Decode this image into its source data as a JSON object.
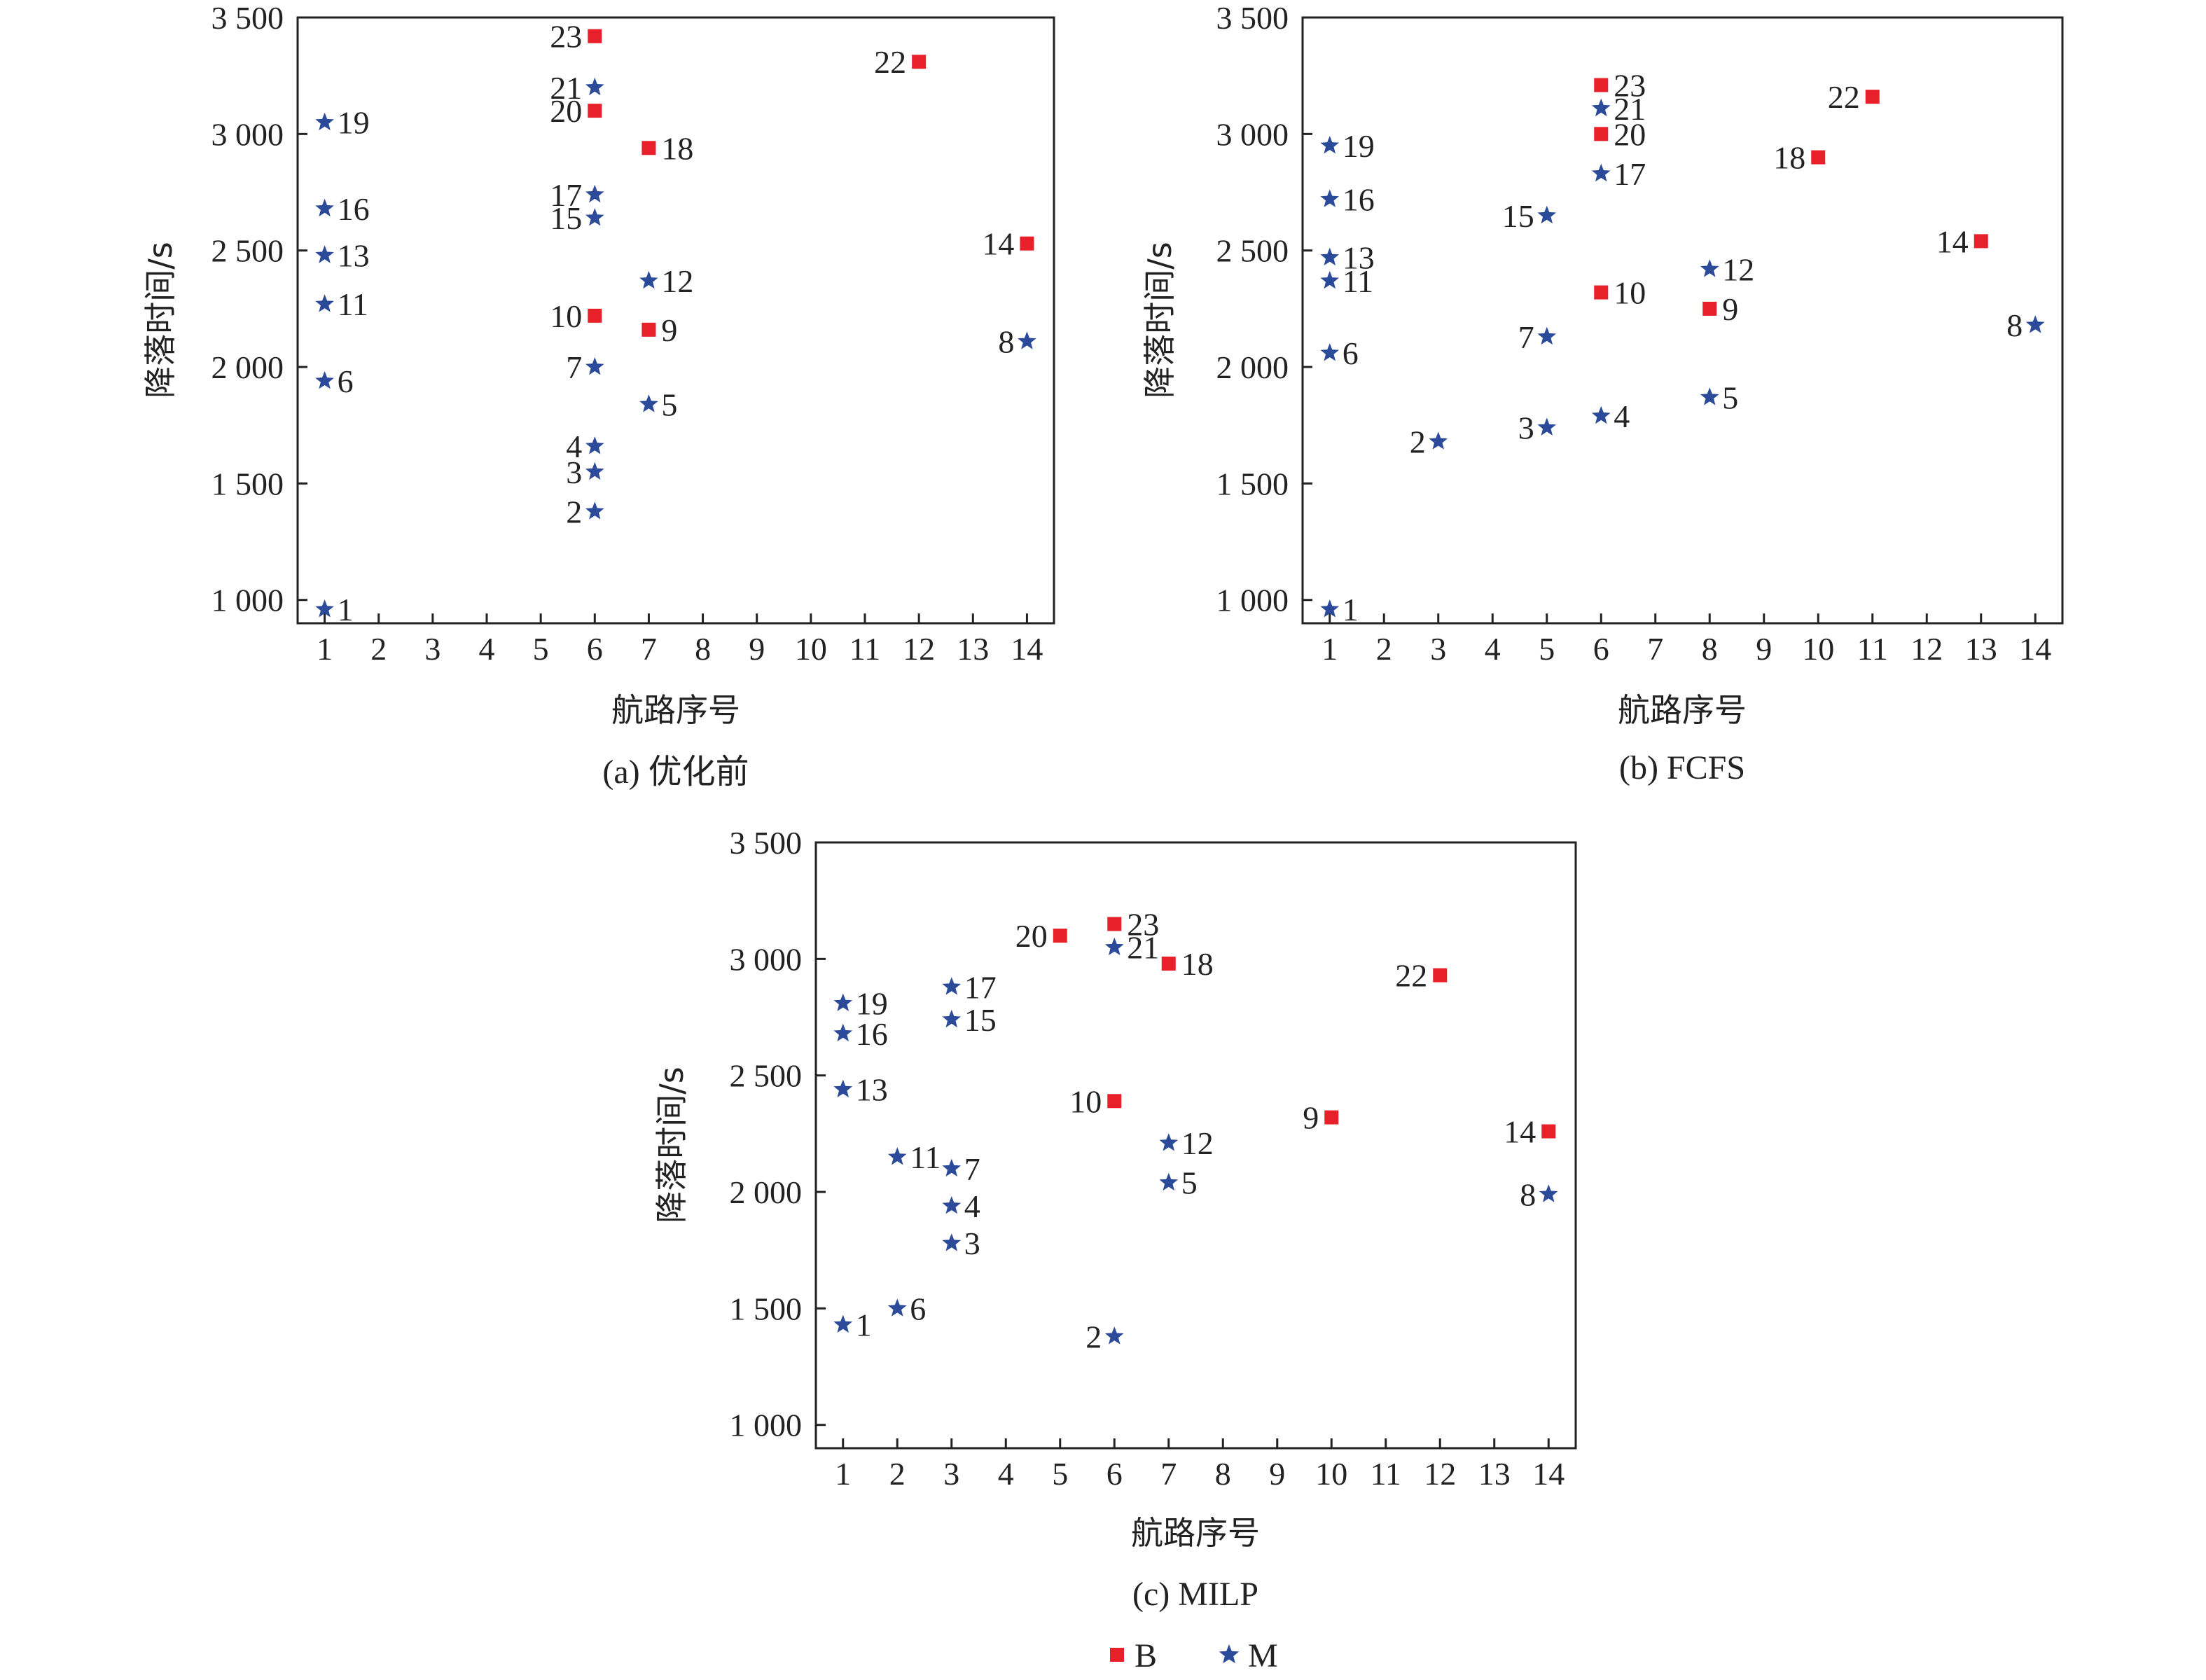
{
  "chart_data": [
    {
      "type": "scatter",
      "caption": "(a) 优化前",
      "xlabel": "航路序号",
      "ylabel": "降落时间/s",
      "xlim": [
        0.5,
        14.5
      ],
      "ylim": [
        900,
        3500
      ],
      "xticks": [
        1,
        2,
        3,
        4,
        5,
        6,
        7,
        8,
        9,
        10,
        11,
        12,
        13,
        14
      ],
      "xtick_labels": [
        "1",
        "2",
        "3",
        "4",
        "5",
        "6",
        "7",
        "8",
        "9",
        "10",
        "11",
        "12",
        "13",
        "14"
      ],
      "yticks": [
        1000,
        1500,
        2000,
        2500,
        3000,
        3500
      ],
      "ytick_labels": [
        "1 000",
        "1 500",
        "2 000",
        "2 500",
        "3 000",
        "3 500"
      ],
      "points": [
        {
          "label": "1",
          "x": 1,
          "y": 960,
          "type": "M",
          "side": "right"
        },
        {
          "label": "2",
          "x": 6,
          "y": 1380,
          "type": "M",
          "side": "left"
        },
        {
          "label": "3",
          "x": 6,
          "y": 1550,
          "type": "M",
          "side": "left"
        },
        {
          "label": "4",
          "x": 6,
          "y": 1660,
          "type": "M",
          "side": "left"
        },
        {
          "label": "5",
          "x": 7,
          "y": 1840,
          "type": "M",
          "side": "right"
        },
        {
          "label": "6",
          "x": 1,
          "y": 1940,
          "type": "M",
          "side": "right"
        },
        {
          "label": "7",
          "x": 6,
          "y": 2000,
          "type": "M",
          "side": "left"
        },
        {
          "label": "8",
          "x": 14,
          "y": 2110,
          "type": "M",
          "side": "left"
        },
        {
          "label": "9",
          "x": 7,
          "y": 2160,
          "type": "B",
          "side": "right"
        },
        {
          "label": "10",
          "x": 6,
          "y": 2220,
          "type": "B",
          "side": "left"
        },
        {
          "label": "11",
          "x": 1,
          "y": 2270,
          "type": "M",
          "side": "right"
        },
        {
          "label": "12",
          "x": 7,
          "y": 2370,
          "type": "M",
          "side": "right"
        },
        {
          "label": "13",
          "x": 1,
          "y": 2480,
          "type": "M",
          "side": "right"
        },
        {
          "label": "14",
          "x": 14,
          "y": 2530,
          "type": "B",
          "side": "left"
        },
        {
          "label": "15",
          "x": 6,
          "y": 2640,
          "type": "M",
          "side": "left"
        },
        {
          "label": "16",
          "x": 1,
          "y": 2680,
          "type": "M",
          "side": "right"
        },
        {
          "label": "17",
          "x": 6,
          "y": 2740,
          "type": "M",
          "side": "left"
        },
        {
          "label": "18",
          "x": 7,
          "y": 2940,
          "type": "B",
          "side": "right"
        },
        {
          "label": "19",
          "x": 1,
          "y": 3050,
          "type": "M",
          "side": "right"
        },
        {
          "label": "20",
          "x": 6,
          "y": 3100,
          "type": "B",
          "side": "left"
        },
        {
          "label": "21",
          "x": 6,
          "y": 3200,
          "type": "M",
          "side": "left"
        },
        {
          "label": "22",
          "x": 12,
          "y": 3310,
          "type": "B",
          "side": "left"
        },
        {
          "label": "23",
          "x": 6,
          "y": 3420,
          "type": "B",
          "side": "left"
        }
      ]
    },
    {
      "type": "scatter",
      "caption": "(b) FCFS",
      "xlabel": "航路序号",
      "ylabel": "降落时间/s",
      "xlim": [
        0.5,
        14.5
      ],
      "ylim": [
        900,
        3500
      ],
      "xticks": [
        1,
        2,
        3,
        4,
        5,
        6,
        7,
        8,
        9,
        10,
        11,
        12,
        13,
        14
      ],
      "xtick_labels": [
        "1",
        "2",
        "3",
        "4",
        "5",
        "6",
        "7",
        "8",
        "9",
        "10",
        "11",
        "12",
        "13",
        "14"
      ],
      "yticks": [
        1000,
        1500,
        2000,
        2500,
        3000,
        3500
      ],
      "ytick_labels": [
        "1 000",
        "1 500",
        "2 000",
        "2 500",
        "3 000",
        "3 500"
      ],
      "points": [
        {
          "label": "1",
          "x": 1,
          "y": 960,
          "type": "M",
          "side": "right"
        },
        {
          "label": "2",
          "x": 3,
          "y": 1680,
          "type": "M",
          "side": "left"
        },
        {
          "label": "3",
          "x": 5,
          "y": 1740,
          "type": "M",
          "side": "left"
        },
        {
          "label": "4",
          "x": 6,
          "y": 1790,
          "type": "M",
          "side": "right"
        },
        {
          "label": "5",
          "x": 8,
          "y": 1870,
          "type": "M",
          "side": "right"
        },
        {
          "label": "6",
          "x": 1,
          "y": 2060,
          "type": "M",
          "side": "right"
        },
        {
          "label": "7",
          "x": 5,
          "y": 2130,
          "type": "M",
          "side": "left"
        },
        {
          "label": "8",
          "x": 14,
          "y": 2180,
          "type": "M",
          "side": "left"
        },
        {
          "label": "9",
          "x": 8,
          "y": 2250,
          "type": "B",
          "side": "right"
        },
        {
          "label": "10",
          "x": 6,
          "y": 2320,
          "type": "B",
          "side": "right"
        },
        {
          "label": "11",
          "x": 1,
          "y": 2370,
          "type": "M",
          "side": "right"
        },
        {
          "label": "12",
          "x": 8,
          "y": 2420,
          "type": "M",
          "side": "right"
        },
        {
          "label": "13",
          "x": 1,
          "y": 2470,
          "type": "M",
          "side": "right"
        },
        {
          "label": "14",
          "x": 13,
          "y": 2540,
          "type": "B",
          "side": "left"
        },
        {
          "label": "15",
          "x": 5,
          "y": 2650,
          "type": "M",
          "side": "left"
        },
        {
          "label": "16",
          "x": 1,
          "y": 2720,
          "type": "M",
          "side": "right"
        },
        {
          "label": "17",
          "x": 6,
          "y": 2830,
          "type": "M",
          "side": "right"
        },
        {
          "label": "18",
          "x": 10,
          "y": 2900,
          "type": "B",
          "side": "left"
        },
        {
          "label": "19",
          "x": 1,
          "y": 2950,
          "type": "M",
          "side": "right"
        },
        {
          "label": "20",
          "x": 6,
          "y": 3000,
          "type": "B",
          "side": "right"
        },
        {
          "label": "21",
          "x": 6,
          "y": 3110,
          "type": "M",
          "side": "right"
        },
        {
          "label": "22",
          "x": 11,
          "y": 3160,
          "type": "B",
          "side": "left"
        },
        {
          "label": "23",
          "x": 6,
          "y": 3210,
          "type": "B",
          "side": "right"
        }
      ]
    },
    {
      "type": "scatter",
      "caption": "(c) MILP",
      "xlabel": "航路序号",
      "ylabel": "降落时间/s",
      "xlim": [
        0.5,
        14.5
      ],
      "ylim": [
        900,
        3500
      ],
      "xticks": [
        1,
        2,
        3,
        4,
        5,
        6,
        7,
        8,
        9,
        10,
        11,
        12,
        13,
        14
      ],
      "xtick_labels": [
        "1",
        "2",
        "3",
        "4",
        "5",
        "6",
        "7",
        "8",
        "9",
        "10",
        "11",
        "12",
        "13",
        "14"
      ],
      "yticks": [
        1000,
        1500,
        2000,
        2500,
        3000,
        3500
      ],
      "ytick_labels": [
        "1 000",
        "1 500",
        "2 000",
        "2 500",
        "3 000",
        "3 500"
      ],
      "points": [
        {
          "label": "1",
          "x": 1,
          "y": 1430,
          "type": "M",
          "side": "right"
        },
        {
          "label": "2",
          "x": 6,
          "y": 1380,
          "type": "M",
          "side": "left"
        },
        {
          "label": "3",
          "x": 3,
          "y": 1780,
          "type": "M",
          "side": "right"
        },
        {
          "label": "4",
          "x": 3,
          "y": 1940,
          "type": "M",
          "side": "right"
        },
        {
          "label": "5",
          "x": 7,
          "y": 2040,
          "type": "M",
          "side": "right"
        },
        {
          "label": "6",
          "x": 2,
          "y": 1500,
          "type": "M",
          "side": "right"
        },
        {
          "label": "7",
          "x": 3,
          "y": 2100,
          "type": "M",
          "side": "right"
        },
        {
          "label": "8",
          "x": 14,
          "y": 1990,
          "type": "M",
          "side": "left"
        },
        {
          "label": "9",
          "x": 10,
          "y": 2320,
          "type": "B",
          "side": "left"
        },
        {
          "label": "10",
          "x": 6,
          "y": 2390,
          "type": "B",
          "side": "left"
        },
        {
          "label": "11",
          "x": 2,
          "y": 2150,
          "type": "M",
          "side": "right"
        },
        {
          "label": "12",
          "x": 7,
          "y": 2210,
          "type": "M",
          "side": "right"
        },
        {
          "label": "13",
          "x": 1,
          "y": 2440,
          "type": "M",
          "side": "right"
        },
        {
          "label": "14",
          "x": 14,
          "y": 2260,
          "type": "B",
          "side": "left"
        },
        {
          "label": "15",
          "x": 3,
          "y": 2740,
          "type": "M",
          "side": "right"
        },
        {
          "label": "16",
          "x": 1,
          "y": 2680,
          "type": "M",
          "side": "right"
        },
        {
          "label": "17",
          "x": 3,
          "y": 2880,
          "type": "M",
          "side": "right"
        },
        {
          "label": "18",
          "x": 7,
          "y": 2980,
          "type": "B",
          "side": "right"
        },
        {
          "label": "19",
          "x": 1,
          "y": 2810,
          "type": "M",
          "side": "right"
        },
        {
          "label": "20",
          "x": 5,
          "y": 3100,
          "type": "B",
          "side": "left"
        },
        {
          "label": "21",
          "x": 6,
          "y": 3050,
          "type": "M",
          "side": "right"
        },
        {
          "label": "22",
          "x": 12,
          "y": 2930,
          "type": "B",
          "side": "left"
        },
        {
          "label": "23",
          "x": 6,
          "y": 3150,
          "type": "B",
          "side": "right"
        }
      ]
    }
  ],
  "legend": {
    "position": "bottom-center",
    "items": [
      {
        "key": "B",
        "label": "B",
        "marker": "square",
        "color": "#e8202a"
      },
      {
        "key": "M",
        "label": "M",
        "marker": "star",
        "color": "#2b4a9a"
      }
    ]
  },
  "colors": {
    "B": "#e8202a",
    "M": "#2b4a9a",
    "M_alt": "#3a2f8f",
    "axis": "#222222"
  }
}
